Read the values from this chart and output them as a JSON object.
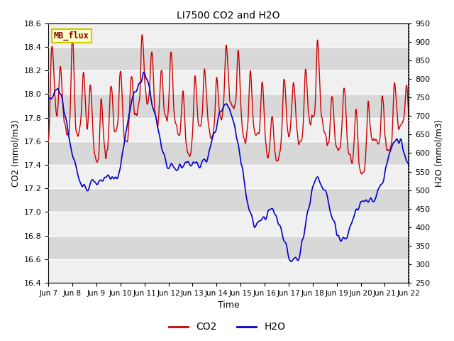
{
  "title": "LI7500 CO2 and H2O",
  "xlabel": "Time",
  "ylabel_left": "CO2 (mmol/m3)",
  "ylabel_right": "H2O (mmol/m3)",
  "co2_ylim": [
    16.4,
    18.6
  ],
  "h2o_ylim": [
    250,
    950
  ],
  "co2_yticks": [
    16.4,
    16.6,
    16.8,
    17.0,
    17.2,
    17.4,
    17.6,
    17.8,
    18.0,
    18.2,
    18.4,
    18.6
  ],
  "h2o_yticks": [
    250,
    300,
    350,
    400,
    450,
    500,
    550,
    600,
    650,
    700,
    750,
    800,
    850,
    900,
    950
  ],
  "xtick_labels": [
    "Jun 7",
    "Jun 8",
    "Jun 9",
    "Jun 10",
    "Jun 11",
    "Jun 12",
    "Jun 13",
    "Jun 14",
    "Jun 15",
    "Jun 16",
    "Jun 17",
    "Jun 18",
    "Jun 19",
    "Jun 20",
    "Jun 21",
    "Jun 22"
  ],
  "co2_color": "#cc0000",
  "h2o_color": "#0000cc",
  "legend_labels": [
    "CO2",
    "H2O"
  ],
  "annotation_text": "MB_flux",
  "annotation_bg": "#ffffcc",
  "annotation_border": "#cccc00",
  "bg_color": "#ffffff",
  "plot_bg_light": "#f0f0f0",
  "plot_bg_dark": "#d8d8d8",
  "grid_color": "#ffffff",
  "linewidth_co2": 1.0,
  "linewidth_h2o": 1.2
}
